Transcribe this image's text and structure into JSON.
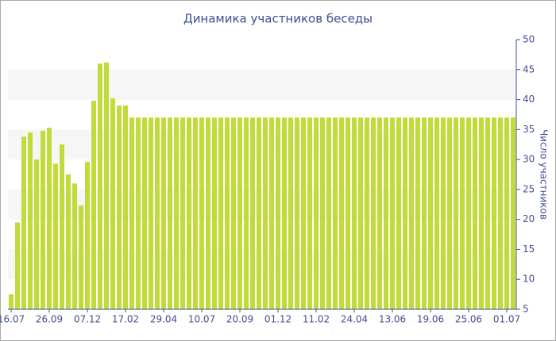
{
  "chart_data": {
    "type": "bar",
    "title": "Динамика участников беседы",
    "y_axis_label": "Число участников",
    "categories": [
      "16.07",
      null,
      null,
      null,
      null,
      null,
      "26.09",
      null,
      null,
      null,
      null,
      null,
      "07.12",
      null,
      null,
      null,
      null,
      null,
      "17.02",
      null,
      null,
      null,
      null,
      null,
      "29.04",
      null,
      null,
      null,
      null,
      null,
      "10.07",
      null,
      null,
      null,
      null,
      null,
      "20.09",
      null,
      null,
      null,
      null,
      null,
      "01.12",
      null,
      null,
      null,
      null,
      null,
      "11.02",
      null,
      null,
      null,
      null,
      null,
      "24.04",
      null,
      null,
      null,
      null,
      null,
      "13.06",
      null,
      null,
      null,
      null,
      null,
      "19.06",
      null,
      null,
      null,
      null,
      null,
      "25.06",
      null,
      null,
      null,
      null,
      null,
      "01.07",
      null
    ],
    "values": [
      7.5,
      19.5,
      33.8,
      34.5,
      30,
      34.8,
      35.3,
      29.3,
      32.5,
      27.5,
      26,
      22.3,
      29.6,
      39.8,
      46,
      46.2,
      40.2,
      39,
      39,
      37,
      37,
      37,
      37,
      37,
      37,
      37,
      37,
      37,
      37,
      37,
      37,
      37,
      37,
      37,
      37,
      37,
      37,
      37,
      37,
      37,
      37,
      37,
      37,
      37,
      37,
      37,
      37,
      37,
      37,
      37,
      37,
      37,
      37,
      37,
      37,
      37,
      37,
      37,
      37,
      37,
      37,
      37,
      37,
      37,
      37,
      37,
      37,
      37,
      37,
      37,
      37,
      37,
      37,
      37,
      37,
      37,
      37,
      37,
      37,
      37
    ],
    "color": "#bfdc3a",
    "ylim": [
      5,
      50
    ],
    "yticks": [
      5,
      10,
      15,
      20,
      25,
      30,
      35,
      40,
      45,
      50
    ],
    "grid": "bands",
    "y_axis_side": "right"
  }
}
